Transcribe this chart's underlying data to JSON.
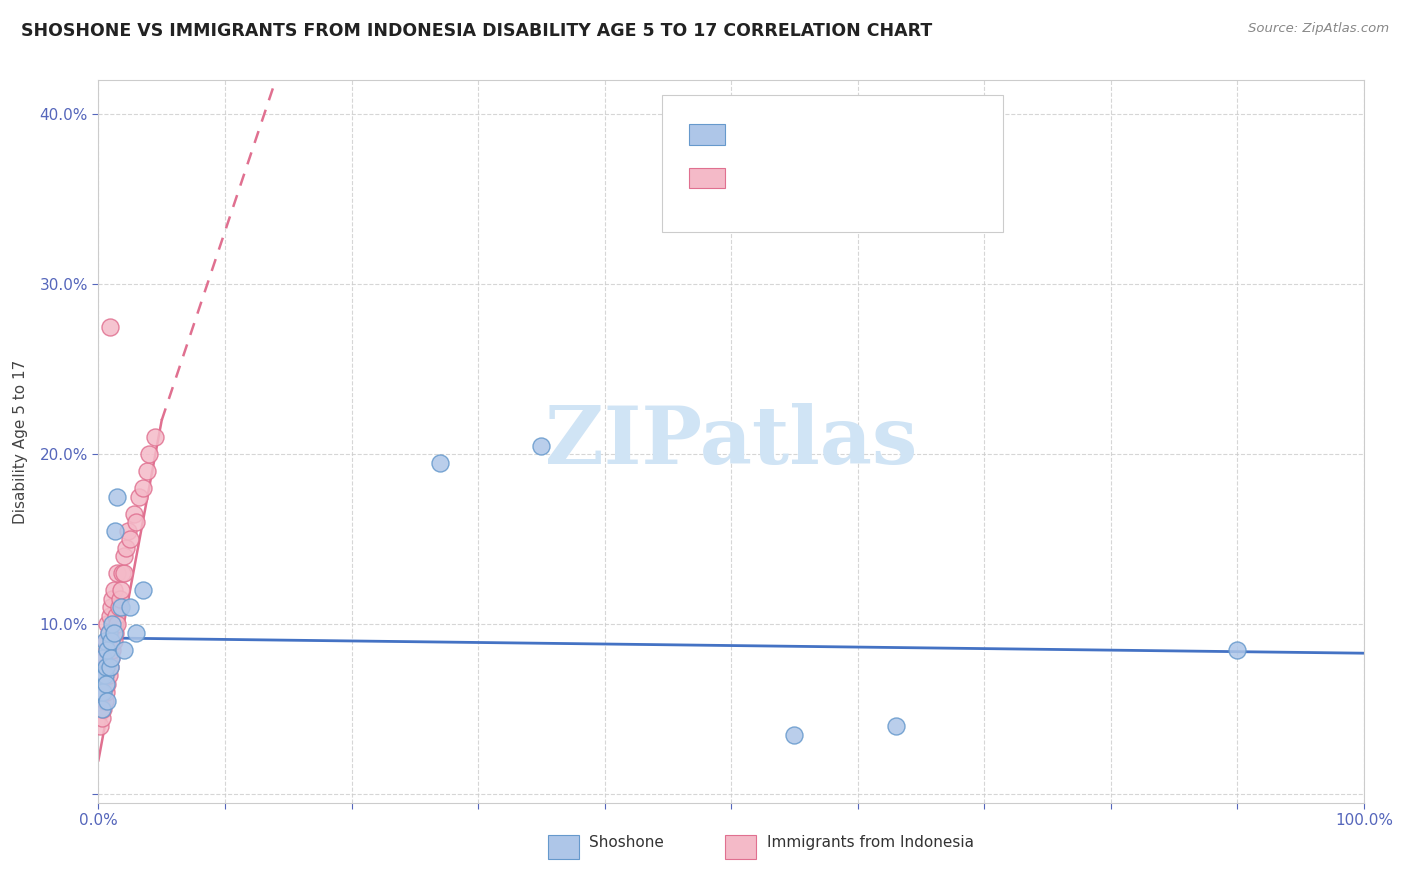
{
  "title": "SHOSHONE VS IMMIGRANTS FROM INDONESIA DISABILITY AGE 5 TO 17 CORRELATION CHART",
  "source": "Source: ZipAtlas.com",
  "ylabel": "Disability Age 5 to 17",
  "xlim": [
    0,
    1.0
  ],
  "ylim": [
    -0.005,
    0.42
  ],
  "shoshone_color": "#aec6e8",
  "shoshone_edge": "#6699cc",
  "indonesia_color": "#f4bac8",
  "indonesia_edge": "#e07090",
  "trend_shoshone_color": "#4472c4",
  "trend_indonesia_color": "#e07090",
  "watermark_color": "#d0e4f5",
  "background_color": "#ffffff",
  "grid_color": "#cccccc",
  "title_color": "#222222",
  "tick_color": "#5566bb",
  "legend_text_color": "#3355cc",
  "legend_r_color": "#cc3333",
  "shoshone_x": [
    0.002,
    0.003,
    0.003,
    0.004,
    0.004,
    0.005,
    0.005,
    0.006,
    0.006,
    0.007,
    0.007,
    0.008,
    0.009,
    0.01,
    0.01,
    0.011,
    0.012,
    0.013,
    0.015,
    0.018,
    0.02,
    0.025,
    0.03,
    0.035,
    0.27,
    0.35,
    0.55,
    0.63,
    0.9
  ],
  "shoshone_y": [
    0.06,
    0.07,
    0.05,
    0.08,
    0.06,
    0.09,
    0.07,
    0.075,
    0.065,
    0.085,
    0.055,
    0.095,
    0.075,
    0.09,
    0.08,
    0.1,
    0.095,
    0.155,
    0.175,
    0.11,
    0.085,
    0.11,
    0.095,
    0.12,
    0.195,
    0.205,
    0.035,
    0.04,
    0.085
  ],
  "indonesia_x": [
    0.001,
    0.001,
    0.002,
    0.002,
    0.003,
    0.003,
    0.004,
    0.004,
    0.005,
    0.005,
    0.006,
    0.006,
    0.006,
    0.007,
    0.007,
    0.007,
    0.008,
    0.008,
    0.009,
    0.009,
    0.01,
    0.01,
    0.011,
    0.011,
    0.012,
    0.012,
    0.013,
    0.014,
    0.015,
    0.015,
    0.016,
    0.017,
    0.018,
    0.019,
    0.02,
    0.02,
    0.022,
    0.023,
    0.025,
    0.028,
    0.03,
    0.032,
    0.035,
    0.038,
    0.04,
    0.045,
    0.009
  ],
  "indonesia_y": [
    0.04,
    0.06,
    0.05,
    0.07,
    0.045,
    0.065,
    0.05,
    0.075,
    0.055,
    0.08,
    0.06,
    0.075,
    0.09,
    0.065,
    0.085,
    0.1,
    0.07,
    0.095,
    0.075,
    0.105,
    0.08,
    0.11,
    0.085,
    0.115,
    0.09,
    0.12,
    0.095,
    0.105,
    0.1,
    0.13,
    0.11,
    0.115,
    0.12,
    0.13,
    0.13,
    0.14,
    0.145,
    0.155,
    0.15,
    0.165,
    0.16,
    0.175,
    0.18,
    0.19,
    0.2,
    0.21,
    0.275
  ],
  "sho_trend_x0": 0.0,
  "sho_trend_x1": 1.0,
  "sho_trend_y0": 0.092,
  "sho_trend_y1": 0.083,
  "ind_trend_x0": 0.0,
  "ind_trend_x1": 0.05,
  "ind_trend_y0": 0.02,
  "ind_trend_y1": 0.22,
  "ind_trend_dash_x0": 0.05,
  "ind_trend_dash_x1": 0.14,
  "ind_trend_dash_y0": 0.22,
  "ind_trend_dash_y1": 0.42
}
